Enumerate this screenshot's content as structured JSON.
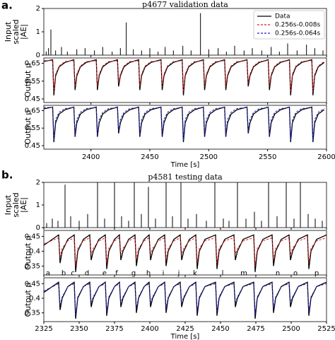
{
  "chart_data": [
    {
      "type": "line",
      "label": "a.",
      "title": "p4677 validation data",
      "xlabel": "Time [s]",
      "xlim": [
        2360,
        2600
      ],
      "xticks": [
        2400,
        2450,
        2500,
        2550,
        2600
      ],
      "legend": "upper right",
      "panels": [
        {
          "ylabel": [
            "Input",
            "scaled",
            "|AE|"
          ],
          "ylabel_color": "#000000",
          "ylim": [
            0,
            2
          ],
          "yticks": [
            0,
            1,
            2
          ]
        },
        {
          "ylabel": [
            "Output μ"
          ],
          "ylabel_color": "#e41a1c",
          "ylim": [
            0.43,
            0.68
          ],
          "yticks": [
            0.45,
            0.55,
            0.65
          ]
        },
        {
          "ylabel": [
            "Output μ"
          ],
          "ylabel_color": "#2222cc",
          "ylim": [
            0.43,
            0.68
          ],
          "yticks": [
            0.45,
            0.55,
            0.65
          ]
        }
      ],
      "ae": {
        "x": [
          2362,
          2364,
          2366,
          2370,
          2375,
          2380,
          2388,
          2395,
          2403,
          2410,
          2418,
          2425,
          2430,
          2436,
          2443,
          2450,
          2457,
          2463,
          2470,
          2478,
          2485,
          2493,
          2500,
          2508,
          2515,
          2522,
          2530,
          2537,
          2545,
          2553,
          2560,
          2567,
          2575,
          2583,
          2590,
          2597
        ],
        "values": [
          0.15,
          0.3,
          1.1,
          0.2,
          0.35,
          0.15,
          0.25,
          0.3,
          0.2,
          0.35,
          0.15,
          0.3,
          1.4,
          0.25,
          0.2,
          0.3,
          0.15,
          0.35,
          0.2,
          0.4,
          0.2,
          1.8,
          0.25,
          0.3,
          0.15,
          0.4,
          0.2,
          0.3,
          0.2,
          0.35,
          0.15,
          0.5,
          0.2,
          0.45,
          0.3,
          0.2
        ]
      },
      "output": {
        "x": [
          2360,
          2367.5,
          2368.5,
          2370,
          2373,
          2378,
          2385.5,
          2386.5,
          2388,
          2391,
          2396,
          2404.5,
          2405.5,
          2407,
          2410,
          2415,
          2422.5,
          2423.5,
          2425,
          2428,
          2433,
          2440.5,
          2441.5,
          2443,
          2446,
          2451,
          2459.5,
          2460.5,
          2462,
          2465,
          2470,
          2477.5,
          2478.5,
          2480,
          2483,
          2488,
          2495.5,
          2496.5,
          2498,
          2501,
          2506,
          2513.5,
          2514.5,
          2516,
          2519,
          2524,
          2532.5,
          2533.5,
          2535,
          2538,
          2543,
          2550.5,
          2551.5,
          2553,
          2556,
          2561,
          2568.5,
          2569.5,
          2571,
          2574,
          2579,
          2587.5,
          2588.5,
          2590,
          2593,
          2598
        ],
        "series": [
          {
            "name": "Data",
            "color": "#000000",
            "dashed": false,
            "panels": [
              1,
              2
            ],
            "values": [
              0.66,
              0.67,
              0.47,
              0.58,
              0.63,
              0.655,
              0.67,
              0.5,
              0.58,
              0.63,
              0.655,
              0.67,
              0.5,
              0.58,
              0.63,
              0.655,
              0.67,
              0.52,
              0.58,
              0.63,
              0.655,
              0.67,
              0.5,
              0.58,
              0.63,
              0.655,
              0.67,
              0.5,
              0.58,
              0.63,
              0.655,
              0.67,
              0.47,
              0.58,
              0.63,
              0.655,
              0.67,
              0.5,
              0.58,
              0.63,
              0.655,
              0.67,
              0.5,
              0.58,
              0.63,
              0.655,
              0.67,
              0.52,
              0.58,
              0.63,
              0.655,
              0.67,
              0.5,
              0.58,
              0.63,
              0.655,
              0.67,
              0.47,
              0.58,
              0.63,
              0.655,
              0.67,
              0.47,
              0.58,
              0.63,
              0.655
            ]
          },
          {
            "name": "0.256s-0.008s",
            "color": "#e41a1c",
            "dashed": true,
            "panels": [
              1
            ],
            "values": [
              0.665,
              0.665,
              0.49,
              0.59,
              0.635,
              0.66,
              0.665,
              0.52,
              0.59,
              0.635,
              0.66,
              0.665,
              0.52,
              0.59,
              0.635,
              0.66,
              0.665,
              0.54,
              0.59,
              0.635,
              0.66,
              0.665,
              0.52,
              0.59,
              0.635,
              0.66,
              0.665,
              0.52,
              0.59,
              0.635,
              0.66,
              0.665,
              0.49,
              0.59,
              0.635,
              0.66,
              0.665,
              0.52,
              0.59,
              0.635,
              0.66,
              0.665,
              0.52,
              0.59,
              0.635,
              0.66,
              0.665,
              0.54,
              0.59,
              0.635,
              0.66,
              0.665,
              0.52,
              0.59,
              0.635,
              0.66,
              0.665,
              0.49,
              0.59,
              0.635,
              0.66,
              0.665,
              0.49,
              0.59,
              0.635,
              0.66
            ]
          },
          {
            "name": "0.256s-0.064s",
            "color": "#2222cc",
            "dashed": true,
            "panels": [
              2
            ],
            "values": [
              0.668,
              0.668,
              0.48,
              0.6,
              0.64,
              0.662,
              0.668,
              0.51,
              0.6,
              0.64,
              0.662,
              0.668,
              0.51,
              0.6,
              0.64,
              0.662,
              0.668,
              0.53,
              0.6,
              0.64,
              0.662,
              0.668,
              0.51,
              0.6,
              0.64,
              0.662,
              0.668,
              0.51,
              0.6,
              0.64,
              0.662,
              0.668,
              0.48,
              0.6,
              0.64,
              0.662,
              0.668,
              0.51,
              0.6,
              0.64,
              0.662,
              0.668,
              0.51,
              0.6,
              0.64,
              0.662,
              0.668,
              0.53,
              0.6,
              0.64,
              0.662,
              0.668,
              0.51,
              0.6,
              0.64,
              0.662,
              0.668,
              0.48,
              0.6,
              0.64,
              0.662,
              0.668,
              0.48,
              0.6,
              0.64,
              0.662
            ]
          }
        ]
      }
    },
    {
      "type": "line",
      "label": "b.",
      "title": "p4581 testing data",
      "xlabel": "Time [s]",
      "xlim": [
        2325,
        2525
      ],
      "xticks": [
        2325,
        2350,
        2375,
        2400,
        2425,
        2450,
        2475,
        2500,
        2525
      ],
      "panels": [
        {
          "ylabel": [
            "Input",
            "scaled",
            "|AE|"
          ],
          "ylabel_color": "#000000",
          "ylim": [
            0,
            2
          ],
          "yticks": [
            0,
            1,
            2
          ]
        },
        {
          "ylabel": [
            "Output μ"
          ],
          "ylabel_color": "#e41a1c",
          "ylim": [
            0.32,
            0.47
          ],
          "yticks": [
            0.35,
            0.4,
            0.45
          ]
        },
        {
          "ylabel": [
            "Output μ"
          ],
          "ylabel_color": "#2222cc",
          "ylim": [
            0.32,
            0.47
          ],
          "yticks": [
            0.35,
            0.4,
            0.45
          ]
        }
      ],
      "annotation_y": 0.34,
      "annotations": [
        {
          "text": "a",
          "x": 2326.5
        },
        {
          "text": "b",
          "x": 2337.5
        },
        {
          "text": "c",
          "x": 2344
        },
        {
          "text": "d",
          "x": 2354
        },
        {
          "text": "e",
          "x": 2366.5
        },
        {
          "text": "f",
          "x": 2375
        },
        {
          "text": "g",
          "x": 2387
        },
        {
          "text": "h",
          "x": 2397.5
        },
        {
          "text": "i",
          "x": 2408
        },
        {
          "text": "j",
          "x": 2419
        },
        {
          "text": "k",
          "x": 2430.5
        },
        {
          "text": "l",
          "x": 2450
        },
        {
          "text": "m",
          "x": 2465
        },
        {
          "text": "n",
          "x": 2489
        },
        {
          "text": "o",
          "x": 2501.5
        },
        {
          "text": "p",
          "x": 2516.5
        }
      ],
      "ae": {
        "x": [
          2327,
          2331,
          2335,
          2340,
          2344,
          2350,
          2356,
          2363,
          2368,
          2375,
          2380,
          2385,
          2389,
          2394,
          2399,
          2404,
          2411.5,
          2416,
          2422,
          2427,
          2433,
          2440,
          2446,
          2452,
          2456,
          2462,
          2468,
          2474,
          2479,
          2484,
          2490,
          2496.5,
          2502,
          2506.5,
          2512,
          2517,
          2522
        ],
        "values": [
          0.2,
          0.4,
          0.3,
          1.9,
          0.5,
          0.3,
          0.6,
          2,
          0.4,
          2,
          0.5,
          0.3,
          2,
          0.6,
          1.8,
          0.4,
          2,
          0.5,
          2,
          0.4,
          0.6,
          0.3,
          2,
          0.4,
          0.3,
          2,
          0.4,
          0.7,
          0.3,
          2,
          0.5,
          2,
          0.4,
          2,
          0.6,
          0.4,
          0.3
        ]
      },
      "output": {
        "x": [
          2325,
          2335.5,
          2336.5,
          2338,
          2342,
          2346.5,
          2347.5,
          2349,
          2353,
          2357.5,
          2358.5,
          2360,
          2364,
          2368.5,
          2369.5,
          2371,
          2375,
          2378.5,
          2379.5,
          2381,
          2385,
          2389.5,
          2390.5,
          2392,
          2396,
          2399.5,
          2400.5,
          2402,
          2406,
          2410.5,
          2411.5,
          2413,
          2417,
          2421.5,
          2422.5,
          2424,
          2428,
          2432.5,
          2433.5,
          2435,
          2439,
          2446.5,
          2447.5,
          2449,
          2453,
          2459.5,
          2460.5,
          2462,
          2466,
          2473.5,
          2474.5,
          2476,
          2480,
          2486.5,
          2487.5,
          2489,
          2493,
          2498.5,
          2499.5,
          2501,
          2505,
          2511.5,
          2512.5,
          2514,
          2518,
          2525
        ],
        "series": [
          {
            "name": "Data",
            "color": "#000000",
            "dashed": false,
            "panels": [
              1,
              2
            ],
            "values": [
              0.42,
              0.455,
              0.36,
              0.4,
              0.44,
              0.455,
              0.33,
              0.4,
              0.44,
              0.455,
              0.37,
              0.4,
              0.44,
              0.455,
              0.34,
              0.4,
              0.44,
              0.455,
              0.37,
              0.4,
              0.44,
              0.455,
              0.35,
              0.4,
              0.44,
              0.455,
              0.37,
              0.4,
              0.44,
              0.455,
              0.35,
              0.4,
              0.44,
              0.455,
              0.37,
              0.4,
              0.44,
              0.455,
              0.34,
              0.4,
              0.44,
              0.455,
              0.34,
              0.4,
              0.44,
              0.455,
              0.37,
              0.4,
              0.44,
              0.455,
              0.33,
              0.4,
              0.44,
              0.455,
              0.35,
              0.4,
              0.44,
              0.455,
              0.37,
              0.4,
              0.44,
              0.455,
              0.34,
              0.4,
              0.44,
              0.455
            ]
          },
          {
            "name": "0.256s-0.008s",
            "color": "#e41a1c",
            "dashed": true,
            "panels": [
              1
            ],
            "values": [
              0.425,
              0.445,
              0.38,
              0.41,
              0.435,
              0.445,
              0.35,
              0.41,
              0.435,
              0.445,
              0.39,
              0.41,
              0.435,
              0.445,
              0.36,
              0.41,
              0.435,
              0.445,
              0.39,
              0.41,
              0.435,
              0.445,
              0.37,
              0.41,
              0.435,
              0.445,
              0.39,
              0.41,
              0.435,
              0.445,
              0.37,
              0.41,
              0.435,
              0.445,
              0.39,
              0.41,
              0.435,
              0.445,
              0.36,
              0.41,
              0.435,
              0.445,
              0.36,
              0.41,
              0.435,
              0.445,
              0.39,
              0.41,
              0.435,
              0.445,
              0.35,
              0.41,
              0.435,
              0.445,
              0.37,
              0.41,
              0.435,
              0.445,
              0.39,
              0.41,
              0.435,
              0.445,
              0.36,
              0.41,
              0.435,
              0.445
            ]
          },
          {
            "name": "0.256s-0.064s",
            "color": "#2222cc",
            "dashed": true,
            "panels": [
              2
            ],
            "values": [
              0.425,
              0.45,
              0.375,
              0.405,
              0.44,
              0.45,
              0.345,
              0.405,
              0.44,
              0.45,
              0.385,
              0.405,
              0.44,
              0.45,
              0.355,
              0.405,
              0.44,
              0.45,
              0.385,
              0.405,
              0.44,
              0.45,
              0.365,
              0.405,
              0.44,
              0.45,
              0.385,
              0.405,
              0.44,
              0.45,
              0.365,
              0.405,
              0.44,
              0.45,
              0.385,
              0.405,
              0.44,
              0.45,
              0.355,
              0.405,
              0.44,
              0.45,
              0.355,
              0.405,
              0.44,
              0.45,
              0.385,
              0.405,
              0.44,
              0.45,
              0.345,
              0.405,
              0.44,
              0.45,
              0.365,
              0.405,
              0.44,
              0.45,
              0.385,
              0.405,
              0.44,
              0.45,
              0.355,
              0.405,
              0.44,
              0.45
            ]
          }
        ]
      }
    }
  ]
}
